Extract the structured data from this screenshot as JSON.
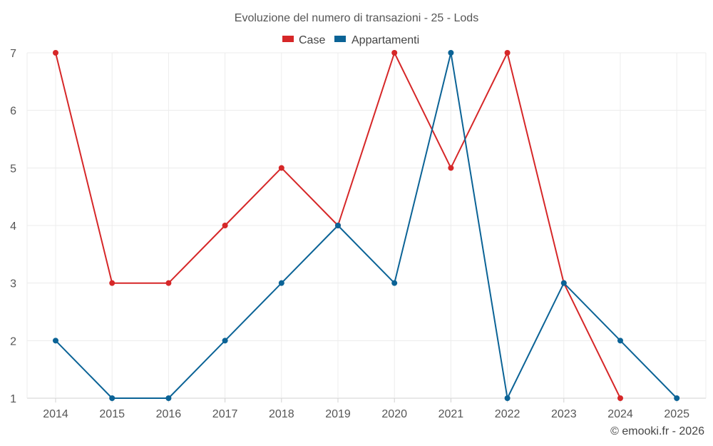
{
  "chart_data": {
    "type": "line",
    "title": "Evoluzione del numero di transazioni - 25 - Lods",
    "categories": [
      "2014",
      "2015",
      "2016",
      "2017",
      "2018",
      "2019",
      "2020",
      "2021",
      "2022",
      "2023",
      "2024",
      "2025"
    ],
    "ylim": [
      1,
      7
    ],
    "yticks": [
      1,
      2,
      3,
      4,
      5,
      6,
      7
    ],
    "grid": true,
    "legend_position": "top-center",
    "series": [
      {
        "name": "Case",
        "color": "#d62728",
        "values": [
          7,
          3,
          3,
          4,
          5,
          4,
          7,
          5,
          7,
          3,
          1,
          null
        ]
      },
      {
        "name": "Appartamenti",
        "color": "#0b6396",
        "values": [
          2,
          1,
          1,
          2,
          3,
          4,
          3,
          7,
          1,
          3,
          2,
          1
        ]
      }
    ]
  },
  "credit": "© emooki.fr - 2026"
}
